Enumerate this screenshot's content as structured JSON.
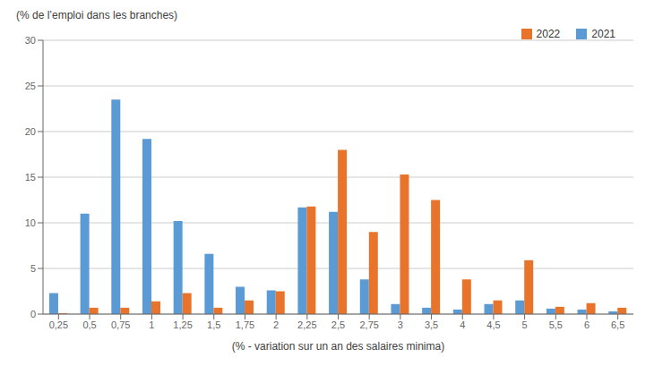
{
  "chart_data": {
    "type": "bar",
    "ylabel": "(% de l’emploi dans les branches)",
    "xlabel": "(% - variation sur un an des salaires minima)",
    "categories": [
      "0,25",
      "0,5",
      "0,75",
      "1",
      "1,25",
      "1,5",
      "1,75",
      "2",
      "2,25",
      "2,5",
      "2,75",
      "3",
      "3,5",
      "4",
      "4,5",
      "5",
      "5,5",
      "6",
      "6,5"
    ],
    "series": [
      {
        "name": "2021",
        "color": "#5B9BD5",
        "values": [
          2.3,
          11.0,
          23.5,
          19.2,
          10.2,
          6.6,
          3.0,
          2.6,
          11.7,
          11.2,
          3.8,
          1.1,
          0.7,
          0.5,
          1.1,
          1.5,
          0.6,
          0.5,
          0.3
        ]
      },
      {
        "name": "2022",
        "color": "#E8732A",
        "values": [
          0.1,
          0.7,
          0.7,
          1.4,
          2.3,
          0.7,
          1.5,
          2.5,
          11.8,
          18.0,
          9.0,
          15.3,
          12.5,
          3.8,
          1.5,
          5.9,
          0.8,
          1.2,
          0.7
        ]
      }
    ],
    "ylim": [
      0,
      30
    ],
    "yticks": [
      0,
      5,
      10,
      15,
      20,
      25,
      30
    ],
    "grid": true,
    "legend": "top"
  }
}
